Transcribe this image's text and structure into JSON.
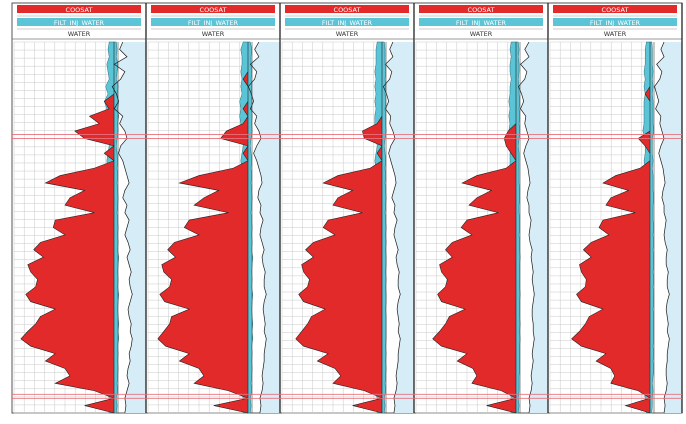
{
  "colors": {
    "coosat": "#e32a2a",
    "filt": "#5bc4d6",
    "water_fill": "#d6ecf6",
    "grid": "#c9c9c9",
    "marker": "#e8707a",
    "border": "#555555"
  },
  "chart_data": {
    "type": "area",
    "track_count": 5,
    "header_labels": {
      "coosat": "COOSAT",
      "filt": "FILT_INJ_WATER",
      "water": "WATER"
    },
    "markers": [
      0.255,
      0.955
    ],
    "depth_samples": [
      0,
      0.02,
      0.04,
      0.06,
      0.08,
      0.1,
      0.12,
      0.14,
      0.16,
      0.18,
      0.2,
      0.22,
      0.24,
      0.26,
      0.28,
      0.3,
      0.32,
      0.34,
      0.36,
      0.38,
      0.4,
      0.42,
      0.44,
      0.46,
      0.48,
      0.5,
      0.52,
      0.54,
      0.56,
      0.58,
      0.6,
      0.62,
      0.64,
      0.66,
      0.68,
      0.7,
      0.72,
      0.74,
      0.76,
      0.78,
      0.8,
      0.82,
      0.84,
      0.86,
      0.88,
      0.9,
      0.92,
      0.94,
      0.96,
      0.98,
      1.0
    ],
    "tracks": [
      {
        "coosat": [
          0,
          0,
          0,
          0,
          0,
          0,
          0,
          0,
          0.1,
          0.05,
          0.25,
          0.15,
          0.4,
          0.3,
          0,
          0.1,
          0,
          0.2,
          0.55,
          0.7,
          0.3,
          0.45,
          0.5,
          0.2,
          0.6,
          0.62,
          0.5,
          0.75,
          0.82,
          0.72,
          0.88,
          0.85,
          0.78,
          0.8,
          0.9,
          0.85,
          0.6,
          0.75,
          0.8,
          0.88,
          0.95,
          0.85,
          0.6,
          0.7,
          0.5,
          0.45,
          0.6,
          0.2,
          0,
          0.3,
          0
        ],
        "filt": [
          0.04,
          0.05,
          0.04,
          0.06,
          0.05,
          0.04,
          0.07,
          0.05,
          0.08,
          0.06,
          0.08,
          0.06,
          0.07,
          0.05,
          0.04,
          0.05,
          0.06,
          0.05,
          0.06,
          0.05,
          0.06,
          0.07,
          0.06,
          0.05,
          0.06,
          0.07,
          0.06,
          0.07,
          0.06,
          0.08,
          0.07,
          0.06,
          0.07,
          0.06,
          0.08,
          0.07,
          0.06,
          0.07,
          0.08,
          0.07,
          0.08,
          0.06,
          0.07,
          0.06,
          0.07,
          0.06,
          0.05,
          0.06,
          0.04,
          0.05,
          0.04
        ],
        "water": [
          0.22,
          0.25,
          0.18,
          0.3,
          0.2,
          0.24,
          0.32,
          0.28,
          0.26,
          0.3,
          0.22,
          0.25,
          0.2,
          0.18,
          0.24,
          0.26,
          0.22,
          0.2,
          0.18,
          0.16,
          0.2,
          0.22,
          0.18,
          0.2,
          0.16,
          0.18,
          0.2,
          0.17,
          0.15,
          0.18,
          0.16,
          0.14,
          0.16,
          0.15,
          0.13,
          0.15,
          0.17,
          0.16,
          0.14,
          0.15,
          0.13,
          0.14,
          0.16,
          0.15,
          0.17,
          0.18,
          0.16,
          0.18,
          0.2,
          0.19,
          0.2
        ]
      },
      {
        "coosat": [
          0,
          0,
          0,
          0,
          0,
          0.05,
          0,
          0,
          0,
          0.05,
          0,
          0.05,
          0.22,
          0.28,
          0,
          0.05,
          0,
          0.15,
          0.5,
          0.7,
          0.3,
          0.45,
          0.55,
          0.2,
          0.6,
          0.65,
          0.5,
          0.75,
          0.82,
          0.74,
          0.88,
          0.86,
          0.78,
          0.8,
          0.9,
          0.85,
          0.6,
          0.78,
          0.8,
          0.86,
          0.92,
          0.84,
          0.6,
          0.7,
          0.5,
          0.45,
          0.55,
          0.2,
          0,
          0.35,
          0
        ],
        "filt": [
          0.04,
          0.06,
          0.05,
          0.05,
          0.06,
          0.05,
          0.06,
          0.05,
          0.07,
          0.06,
          0.07,
          0.06,
          0.07,
          0.05,
          0.04,
          0.05,
          0.06,
          0.05,
          0.06,
          0.05,
          0.06,
          0.07,
          0.06,
          0.05,
          0.06,
          0.07,
          0.06,
          0.07,
          0.06,
          0.08,
          0.07,
          0.06,
          0.07,
          0.06,
          0.08,
          0.07,
          0.06,
          0.07,
          0.08,
          0.07,
          0.08,
          0.06,
          0.07,
          0.06,
          0.07,
          0.06,
          0.05,
          0.06,
          0.04,
          0.05,
          0.04
        ],
        "water": [
          0.2,
          0.24,
          0.2,
          0.28,
          0.22,
          0.24,
          0.3,
          0.27,
          0.25,
          0.28,
          0.22,
          0.24,
          0.2,
          0.18,
          0.22,
          0.25,
          0.22,
          0.2,
          0.18,
          0.17,
          0.2,
          0.21,
          0.18,
          0.19,
          0.16,
          0.18,
          0.19,
          0.17,
          0.15,
          0.17,
          0.16,
          0.14,
          0.15,
          0.15,
          0.13,
          0.15,
          0.16,
          0.15,
          0.14,
          0.15,
          0.13,
          0.14,
          0.15,
          0.15,
          0.16,
          0.17,
          0.16,
          0.17,
          0.19,
          0.18,
          0.19
        ]
      },
      {
        "coosat": [
          0,
          0,
          0,
          0,
          0,
          0,
          0,
          0,
          0,
          0,
          0,
          0.05,
          0.2,
          0.18,
          0,
          0.05,
          0,
          0.12,
          0.45,
          0.6,
          0.3,
          0.45,
          0.5,
          0.2,
          0.55,
          0.6,
          0.48,
          0.7,
          0.78,
          0.7,
          0.82,
          0.8,
          0.74,
          0.76,
          0.85,
          0.8,
          0.58,
          0.72,
          0.76,
          0.82,
          0.88,
          0.8,
          0.55,
          0.66,
          0.48,
          0.42,
          0.5,
          0.18,
          0,
          0.3,
          0
        ],
        "filt": [
          0.04,
          0.05,
          0.05,
          0.05,
          0.06,
          0.05,
          0.06,
          0.05,
          0.06,
          0.05,
          0.06,
          0.06,
          0.07,
          0.05,
          0.04,
          0.05,
          0.06,
          0.05,
          0.06,
          0.05,
          0.06,
          0.07,
          0.06,
          0.05,
          0.06,
          0.07,
          0.06,
          0.07,
          0.06,
          0.07,
          0.07,
          0.06,
          0.07,
          0.06,
          0.07,
          0.07,
          0.06,
          0.07,
          0.07,
          0.07,
          0.07,
          0.06,
          0.07,
          0.06,
          0.07,
          0.06,
          0.05,
          0.06,
          0.04,
          0.05,
          0.04
        ],
        "water": [
          0.2,
          0.23,
          0.2,
          0.27,
          0.21,
          0.23,
          0.29,
          0.26,
          0.24,
          0.27,
          0.22,
          0.23,
          0.2,
          0.18,
          0.22,
          0.24,
          0.22,
          0.2,
          0.18,
          0.17,
          0.19,
          0.21,
          0.18,
          0.19,
          0.16,
          0.18,
          0.19,
          0.17,
          0.15,
          0.17,
          0.16,
          0.14,
          0.15,
          0.15,
          0.13,
          0.15,
          0.16,
          0.15,
          0.14,
          0.15,
          0.13,
          0.14,
          0.15,
          0.15,
          0.16,
          0.17,
          0.16,
          0.17,
          0.19,
          0.18,
          0.19
        ]
      },
      {
        "coosat": [
          0,
          0,
          0,
          0,
          0,
          0,
          0,
          0,
          0,
          0,
          0,
          0,
          0.08,
          0.12,
          0.1,
          0.05,
          0,
          0.1,
          0.4,
          0.55,
          0.25,
          0.4,
          0.48,
          0.18,
          0.5,
          0.56,
          0.45,
          0.65,
          0.72,
          0.65,
          0.78,
          0.76,
          0.7,
          0.72,
          0.8,
          0.76,
          0.52,
          0.68,
          0.72,
          0.78,
          0.85,
          0.76,
          0.5,
          0.6,
          0.44,
          0.4,
          0.45,
          0.15,
          0,
          0.3,
          0
        ],
        "filt": [
          0.04,
          0.05,
          0.04,
          0.05,
          0.05,
          0.04,
          0.05,
          0.05,
          0.06,
          0.05,
          0.06,
          0.05,
          0.06,
          0.05,
          0.04,
          0.05,
          0.05,
          0.05,
          0.05,
          0.05,
          0.06,
          0.06,
          0.05,
          0.05,
          0.06,
          0.06,
          0.05,
          0.06,
          0.06,
          0.07,
          0.06,
          0.06,
          0.06,
          0.06,
          0.07,
          0.06,
          0.06,
          0.06,
          0.07,
          0.06,
          0.07,
          0.06,
          0.06,
          0.06,
          0.06,
          0.05,
          0.05,
          0.05,
          0.04,
          0.05,
          0.04
        ],
        "water": [
          0.18,
          0.22,
          0.18,
          0.26,
          0.2,
          0.22,
          0.28,
          0.25,
          0.23,
          0.26,
          0.21,
          0.22,
          0.2,
          0.18,
          0.21,
          0.23,
          0.21,
          0.19,
          0.18,
          0.17,
          0.19,
          0.2,
          0.18,
          0.18,
          0.16,
          0.17,
          0.18,
          0.17,
          0.15,
          0.16,
          0.15,
          0.14,
          0.15,
          0.14,
          0.13,
          0.14,
          0.15,
          0.15,
          0.14,
          0.14,
          0.13,
          0.14,
          0.15,
          0.14,
          0.15,
          0.16,
          0.15,
          0.16,
          0.18,
          0.17,
          0.18
        ]
      },
      {
        "coosat": [
          0,
          0,
          0,
          0,
          0,
          0,
          0,
          0.05,
          0,
          0,
          0,
          0,
          0,
          0.12,
          0.05,
          0,
          0,
          0.1,
          0.35,
          0.48,
          0.22,
          0.4,
          0.45,
          0.15,
          0.48,
          0.52,
          0.42,
          0.6,
          0.68,
          0.6,
          0.72,
          0.7,
          0.65,
          0.66,
          0.75,
          0.7,
          0.48,
          0.62,
          0.66,
          0.72,
          0.8,
          0.7,
          0.45,
          0.55,
          0.4,
          0.36,
          0.4,
          0.12,
          0,
          0.25,
          0
        ],
        "filt": [
          0.03,
          0.04,
          0.04,
          0.04,
          0.05,
          0.04,
          0.05,
          0.04,
          0.05,
          0.05,
          0.05,
          0.05,
          0.06,
          0.04,
          0.04,
          0.04,
          0.05,
          0.04,
          0.05,
          0.05,
          0.05,
          0.06,
          0.05,
          0.05,
          0.05,
          0.06,
          0.05,
          0.06,
          0.05,
          0.06,
          0.06,
          0.05,
          0.06,
          0.05,
          0.06,
          0.06,
          0.05,
          0.06,
          0.06,
          0.06,
          0.06,
          0.05,
          0.06,
          0.05,
          0.06,
          0.05,
          0.04,
          0.05,
          0.04,
          0.04,
          0.03
        ],
        "water": [
          0.17,
          0.2,
          0.17,
          0.24,
          0.19,
          0.21,
          0.26,
          0.24,
          0.22,
          0.25,
          0.2,
          0.21,
          0.19,
          0.17,
          0.2,
          0.22,
          0.2,
          0.18,
          0.17,
          0.16,
          0.18,
          0.19,
          0.17,
          0.17,
          0.15,
          0.16,
          0.17,
          0.16,
          0.14,
          0.15,
          0.15,
          0.13,
          0.14,
          0.14,
          0.12,
          0.14,
          0.15,
          0.14,
          0.13,
          0.14,
          0.12,
          0.13,
          0.14,
          0.14,
          0.15,
          0.15,
          0.14,
          0.15,
          0.17,
          0.16,
          0.17
        ]
      }
    ]
  }
}
